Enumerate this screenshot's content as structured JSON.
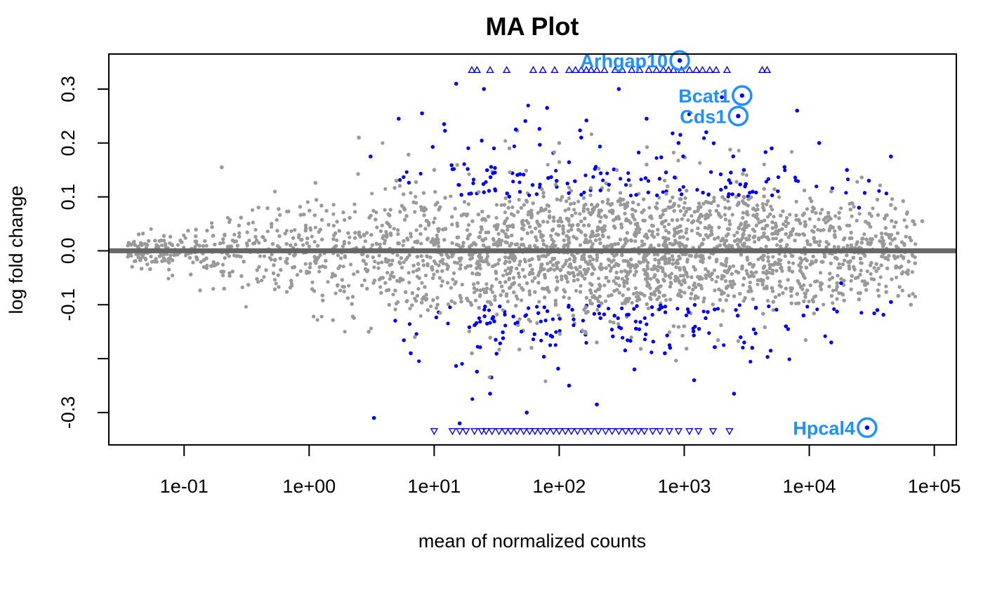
{
  "chart_data": {
    "type": "scatter",
    "title": "MA Plot",
    "xlabel": "mean of normalized counts",
    "ylabel": "log fold change",
    "x_scale": "log10",
    "xlim": [
      0.025,
      150000
    ],
    "ylim": [
      -0.36,
      0.365
    ],
    "x_ticks": [
      0.1,
      1,
      10,
      100,
      1000,
      10000,
      100000
    ],
    "x_tick_labels": [
      "1e-01",
      "1e+00",
      "1e+01",
      "1e+02",
      "1e+03",
      "1e+04",
      "1e+05"
    ],
    "y_ticks": [
      -0.3,
      -0.2,
      -0.1,
      0.0,
      0.1,
      0.2,
      0.3
    ],
    "y_tick_labels": [
      "-0.3",
      "",
      "-0.1",
      "0.0",
      "0.1",
      "0.2",
      "0.3"
    ],
    "reference_line_y": 0,
    "colors": {
      "not_significant": "#999999",
      "significant": "#0000ff",
      "highlight": "#1e90ff",
      "reference_line": "#666666"
    },
    "clip_bounds": {
      "upper": 0.336,
      "lower": -0.335
    },
    "series": [
      {
        "role": "significant-sample",
        "color": "#0000ff",
        "points": [
          [
            3.3,
            -0.31
          ],
          [
            3.1,
            0.175
          ],
          [
            5.2,
            0.245
          ],
          [
            6.5,
            -0.19
          ],
          [
            8.0,
            0.255
          ],
          [
            12,
            0.235
          ],
          [
            15,
            0.31
          ],
          [
            16,
            -0.32
          ],
          [
            25,
            0.3
          ],
          [
            28,
            -0.265
          ],
          [
            45,
            0.225
          ],
          [
            55,
            -0.3
          ],
          [
            80,
            0.265
          ],
          [
            120,
            -0.25
          ],
          [
            150,
            0.21
          ],
          [
            200,
            -0.285
          ],
          [
            300,
            0.3
          ],
          [
            400,
            -0.22
          ],
          [
            500,
            0.245
          ],
          [
            700,
            -0.19
          ],
          [
            900,
            0.2
          ],
          [
            1200,
            -0.24
          ],
          [
            1500,
            0.22
          ],
          [
            2000,
            0.285
          ],
          [
            2500,
            -0.265
          ],
          [
            3000,
            0.15
          ],
          [
            3500,
            -0.18
          ],
          [
            5000,
            0.19
          ],
          [
            6500,
            -0.14
          ],
          [
            8000,
            0.26
          ],
          [
            9000,
            -0.12
          ],
          [
            12000,
            0.2
          ],
          [
            15000,
            -0.17
          ],
          [
            20000,
            0.15
          ],
          [
            30000,
            0.13
          ],
          [
            35000,
            -0.11
          ],
          [
            45000,
            0.175
          ],
          [
            45000,
            -0.095
          ],
          [
            18000,
            -0.06
          ],
          [
            25000,
            0.08
          ]
        ]
      },
      {
        "role": "not-significant-sample",
        "color": "#999999",
        "points": [
          [
            0.2,
            0.155
          ],
          [
            0.3,
            -0.02
          ],
          [
            0.5,
            0.05
          ],
          [
            1.0,
            -0.04
          ],
          [
            2.5,
            0.21
          ],
          [
            3.0,
            -0.15
          ],
          [
            5.0,
            0.13
          ],
          [
            7.0,
            -0.16
          ],
          [
            10,
            0.15
          ],
          [
            20,
            -0.19
          ],
          [
            40,
            0.19
          ],
          [
            60,
            -0.18
          ],
          [
            100,
            0.2
          ],
          [
            200,
            -0.17
          ],
          [
            500,
            0.16
          ],
          [
            1000,
            -0.14
          ],
          [
            3000,
            0.1
          ],
          [
            8000,
            -0.08
          ],
          [
            15000,
            0.11
          ],
          [
            25000,
            -0.09
          ],
          [
            35000,
            0.095
          ],
          [
            45000,
            0.085
          ],
          [
            50000,
            -0.03
          ],
          [
            60000,
            -0.04
          ],
          [
            65000,
            -0.1
          ],
          [
            80000,
            0.055
          ],
          [
            40000,
            0.06
          ],
          [
            30000,
            0.05
          ]
        ]
      }
    ],
    "clipped_up_x": [
      20,
      22,
      28,
      38,
      62,
      74,
      92,
      120,
      135,
      150,
      165,
      180,
      200,
      230,
      280,
      320,
      380,
      440,
      520,
      600,
      680,
      750,
      820,
      950,
      1100,
      1250,
      1400,
      1600,
      1800,
      2200,
      4200,
      4600
    ],
    "clipped_down_x": [
      10,
      14,
      16,
      18,
      21,
      24,
      26,
      29,
      33,
      37,
      41,
      46,
      52,
      58,
      64,
      71,
      80,
      90,
      100,
      112,
      125,
      140,
      160,
      180,
      205,
      235,
      265,
      300,
      340,
      380,
      430,
      480,
      560,
      640,
      760,
      900,
      1100,
      1300,
      1700,
      2300
    ],
    "highlighted_genes": [
      {
        "name": "Arhgap10",
        "x": 920,
        "y": 0.353
      },
      {
        "name": "Bcat1",
        "x": 2900,
        "y": 0.288
      },
      {
        "name": "Cds1",
        "x": 2700,
        "y": 0.25
      },
      {
        "name": "Hpcal4",
        "x": 29000,
        "y": -0.328
      }
    ]
  }
}
